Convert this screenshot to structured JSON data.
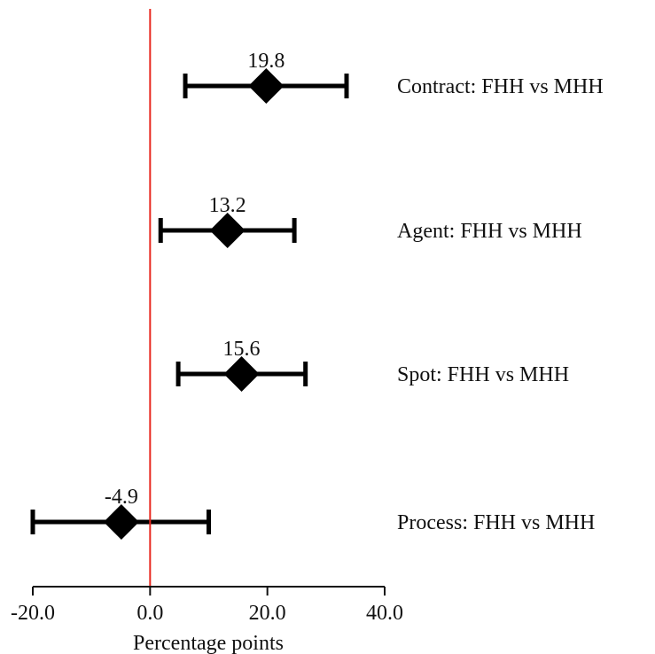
{
  "chart_data": {
    "type": "forest-plot",
    "xlabel": "Percentage points",
    "xlim": [
      -20,
      40
    ],
    "xticks": [
      -20,
      0,
      20,
      40
    ],
    "xtick_labels": [
      "-20.0",
      "0.0",
      "20.0",
      "40.0"
    ],
    "reference_line": {
      "x": 0,
      "color": "#e8281f"
    },
    "marker_color": "#000000",
    "rows": [
      {
        "label": "Contract: FHH vs MHH",
        "estimate": 19.8,
        "value_label": "19.8",
        "ci_low": 6.0,
        "ci_high": 33.5
      },
      {
        "label": "Agent: FHH vs MHH",
        "estimate": 13.2,
        "value_label": "13.2",
        "ci_low": 1.8,
        "ci_high": 24.6
      },
      {
        "label": "Spot: FHH vs MHH",
        "estimate": 15.6,
        "value_label": "15.6",
        "ci_low": 4.8,
        "ci_high": 26.5
      },
      {
        "label": "Process: FHH vs MHH",
        "estimate": -4.9,
        "value_label": "-4.9",
        "ci_low": -20.0,
        "ci_high": 10.0
      }
    ]
  }
}
